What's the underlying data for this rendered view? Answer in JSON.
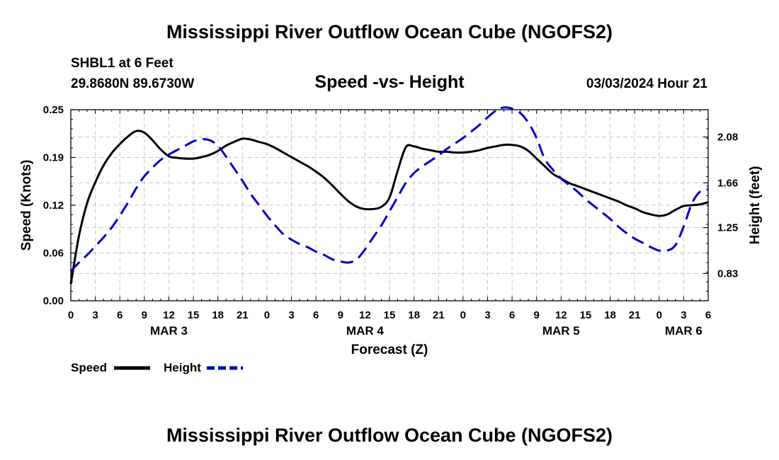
{
  "header": {
    "title": "Mississippi River Outflow Ocean Cube (NGOFS2)",
    "station": "SHBL1 at 6 Feet",
    "location": "29.8680N  89.6730W",
    "subtitle": "Speed -vs- Height",
    "datetime": "03/03/2024 Hour 21"
  },
  "footer": {
    "title": "Mississippi River Outflow Ocean Cube (NGOFS2)"
  },
  "legend": {
    "speed_label": "Speed",
    "height_label": "Height"
  },
  "chart_data": {
    "type": "line",
    "title": "Speed -vs- Height",
    "xlabel": "Forecast (Z)",
    "ylabel": "Speed (Knots)",
    "y2label": "Height (feet)",
    "x_unit": "hours from MAR 3 00Z",
    "xlim": [
      0,
      78
    ],
    "ylim": [
      0.0,
      0.25
    ],
    "y2lim": [
      0.58,
      2.33
    ],
    "x_tick_values": [
      0,
      3,
      6,
      9,
      12,
      15,
      18,
      21,
      24,
      27,
      30,
      33,
      36,
      39,
      42,
      45,
      48,
      51,
      54,
      57,
      60,
      63,
      66,
      69,
      72,
      75,
      78
    ],
    "x_tick_labels": [
      "0",
      "3",
      "6",
      "9",
      "12",
      "15",
      "18",
      "21",
      "0",
      "3",
      "6",
      "9",
      "12",
      "15",
      "18",
      "21",
      "0",
      "3",
      "6",
      "9",
      "12",
      "15",
      "18",
      "21",
      "0",
      "3",
      "6"
    ],
    "date_labels": [
      {
        "x": 12,
        "label": "MAR 3"
      },
      {
        "x": 36,
        "label": "MAR 4"
      },
      {
        "x": 60,
        "label": "MAR 5"
      },
      {
        "x": 75,
        "label": "MAR 6"
      }
    ],
    "y_tick_values": [
      0.0,
      0.0625,
      0.125,
      0.1875,
      0.25
    ],
    "y_tick_labels": [
      "0.00",
      "0.06",
      "0.12",
      "0.19",
      "0.25"
    ],
    "y2_tick_values": [
      0.83,
      1.25,
      1.66,
      2.08
    ],
    "y2_tick_labels": [
      "0.83",
      "1.25",
      "1.66",
      "2.08"
    ],
    "legend_position": "bottom-left",
    "grid": true,
    "series": [
      {
        "name": "Speed",
        "axis": "left",
        "color": "#000000",
        "dash": "solid",
        "x": [
          0,
          1,
          2,
          3,
          4,
          5,
          6,
          7,
          8,
          9,
          10,
          11,
          12,
          13,
          14,
          15,
          16,
          17,
          18,
          19,
          20,
          21,
          22,
          23,
          24,
          25,
          26,
          27,
          28,
          29,
          30,
          31,
          32,
          33,
          34,
          35,
          36,
          37,
          38,
          39,
          40,
          41,
          42,
          43,
          44,
          45,
          46,
          47,
          48,
          49,
          50,
          51,
          52,
          53,
          54,
          55,
          56,
          57,
          58,
          59,
          60,
          61,
          62,
          63,
          64,
          65,
          66,
          67,
          68,
          69,
          70,
          71,
          72,
          73,
          74,
          75,
          76,
          77,
          78
        ],
        "values": [
          0.022,
          0.085,
          0.128,
          0.155,
          0.177,
          0.193,
          0.205,
          0.215,
          0.222,
          0.22,
          0.21,
          0.198,
          0.189,
          0.187,
          0.186,
          0.186,
          0.188,
          0.191,
          0.196,
          0.203,
          0.208,
          0.212,
          0.211,
          0.208,
          0.205,
          0.2,
          0.194,
          0.188,
          0.182,
          0.176,
          0.169,
          0.161,
          0.151,
          0.14,
          0.13,
          0.123,
          0.12,
          0.12,
          0.123,
          0.135,
          0.17,
          0.201,
          0.202,
          0.199,
          0.197,
          0.195,
          0.195,
          0.194,
          0.194,
          0.195,
          0.197,
          0.2,
          0.202,
          0.204,
          0.204,
          0.202,
          0.196,
          0.186,
          0.176,
          0.166,
          0.16,
          0.154,
          0.15,
          0.146,
          0.142,
          0.138,
          0.134,
          0.13,
          0.125,
          0.121,
          0.116,
          0.113,
          0.111,
          0.113,
          0.119,
          0.124,
          0.125,
          0.126,
          0.129
        ]
      },
      {
        "name": "Height",
        "axis": "right",
        "color": "#0000c8",
        "dash": "dashed",
        "x": [
          0,
          1,
          2,
          3,
          4,
          5,
          6,
          7,
          8,
          9,
          10,
          11,
          12,
          13,
          14,
          15,
          16,
          17,
          18,
          19,
          20,
          21,
          22,
          23,
          24,
          25,
          26,
          27,
          28,
          29,
          30,
          31,
          32,
          33,
          34,
          35,
          36,
          37,
          38,
          39,
          40,
          41,
          42,
          43,
          44,
          45,
          46,
          47,
          48,
          49,
          50,
          51,
          52,
          53,
          54,
          55,
          56,
          57,
          58,
          59,
          60,
          61,
          62,
          63,
          64,
          65,
          66,
          67,
          68,
          69,
          70,
          71,
          72,
          73,
          74,
          75,
          76,
          77,
          78
        ],
        "values": [
          0.85,
          0.93,
          1.0,
          1.08,
          1.16,
          1.25,
          1.36,
          1.48,
          1.61,
          1.72,
          1.8,
          1.87,
          1.92,
          1.96,
          2.0,
          2.04,
          2.06,
          2.05,
          2.0,
          1.9,
          1.79,
          1.68,
          1.56,
          1.46,
          1.36,
          1.27,
          1.19,
          1.14,
          1.1,
          1.07,
          1.03,
          1.0,
          0.96,
          0.94,
          0.93,
          0.96,
          1.05,
          1.16,
          1.27,
          1.4,
          1.53,
          1.66,
          1.75,
          1.81,
          1.86,
          1.91,
          1.97,
          2.02,
          2.07,
          2.13,
          2.19,
          2.26,
          2.32,
          2.35,
          2.34,
          2.3,
          2.21,
          2.07,
          1.88,
          1.78,
          1.7,
          1.64,
          1.58,
          1.51,
          1.45,
          1.39,
          1.33,
          1.26,
          1.2,
          1.15,
          1.11,
          1.07,
          1.04,
          1.04,
          1.09,
          1.26,
          1.47,
          1.58,
          1.6
        ]
      }
    ]
  }
}
